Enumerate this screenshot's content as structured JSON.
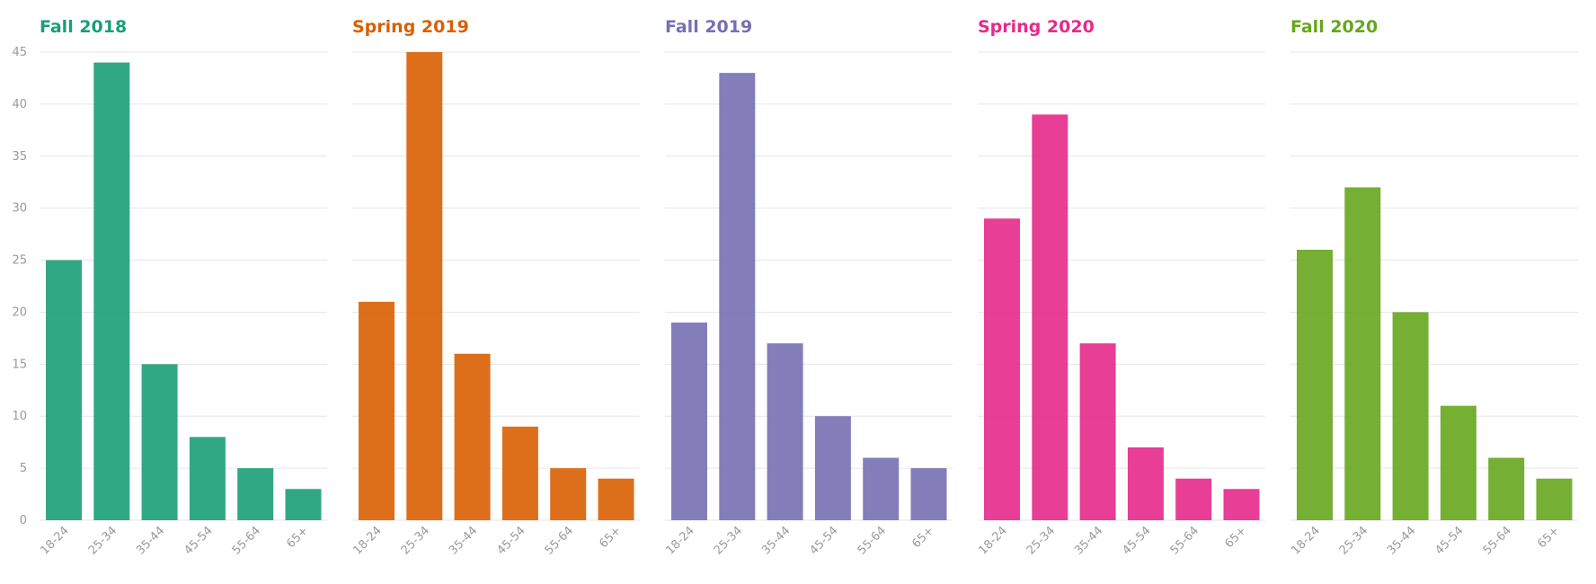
{
  "chart_data": {
    "type": "bar",
    "layout": "small-multiples",
    "categories": [
      "18-24",
      "25-34",
      "35-44",
      "45-54",
      "55-64",
      "65+"
    ],
    "ylim": [
      0,
      45
    ],
    "yticks": [
      0,
      5,
      10,
      15,
      20,
      25,
      30,
      35,
      40,
      45
    ],
    "grid": true,
    "legend": "none",
    "panels": [
      {
        "title": "Fall 2018",
        "color": "#1b9e77",
        "values": [
          25,
          44,
          15,
          8,
          5,
          3
        ]
      },
      {
        "title": "Spring 2019",
        "color": "#d95f02",
        "values": [
          21,
          45,
          16,
          9,
          5,
          4
        ]
      },
      {
        "title": "Fall 2019",
        "color": "#7570b3",
        "values": [
          19,
          43,
          17,
          10,
          6,
          5
        ]
      },
      {
        "title": "Spring 2020",
        "color": "#e7298a",
        "values": [
          29,
          39,
          17,
          7,
          4,
          3
        ]
      },
      {
        "title": "Fall 2020",
        "color": "#66a61e",
        "values": [
          26,
          32,
          20,
          11,
          6,
          4
        ]
      }
    ]
  }
}
